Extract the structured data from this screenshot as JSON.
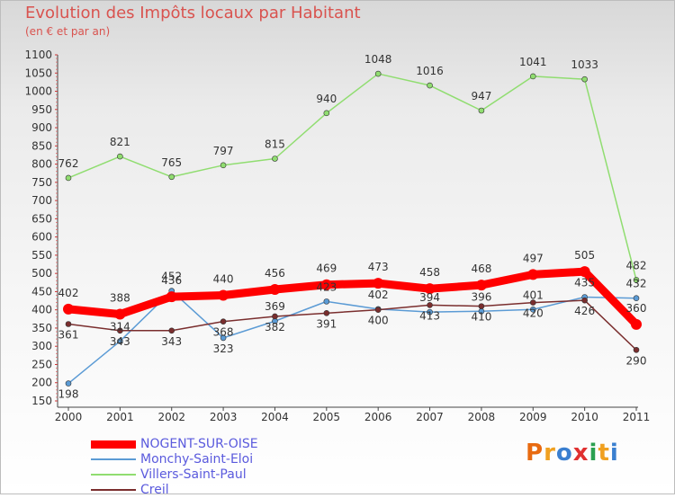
{
  "title": "Evolution des Impôts locaux par Habitant",
  "subtitle": "(en € et par an)",
  "logo_text": "Proxiti",
  "logo_colors": [
    "#e86a10",
    "#f0a020",
    "#3a7fd0",
    "#e03030",
    "#2aa050",
    "#f0a020",
    "#3a7fd0"
  ],
  "chart_data": {
    "type": "line",
    "x": [
      "2000",
      "2001",
      "2002",
      "2003",
      "2004",
      "2005",
      "2006",
      "2007",
      "2008",
      "2009",
      "2010",
      "2011"
    ],
    "yticks": [
      "150",
      "200",
      "250",
      "300",
      "350",
      "400",
      "450",
      "500",
      "550",
      "600",
      "650",
      "700",
      "750",
      "800",
      "850",
      "900",
      "950",
      "1000",
      "1050",
      "1100"
    ],
    "ylim": [
      150,
      1100
    ],
    "grid": false,
    "legend_position": "bottom-left",
    "series": [
      {
        "name": "NOGENT-SUR-OISE",
        "color": "#ff0000",
        "width": 9,
        "values": [
          402,
          388,
          436,
          440,
          456,
          469,
          473,
          458,
          468,
          497,
          505,
          360
        ],
        "labels": [
          "402",
          "388",
          "436",
          "440",
          "456",
          "469",
          "473",
          "458",
          "468",
          "497",
          "505",
          "360"
        ]
      },
      {
        "name": "Monchy-Saint-Eloi",
        "color": "#5b9bd5",
        "width": 1.5,
        "values": [
          198,
          314,
          452,
          323,
          369,
          423,
          402,
          394,
          396,
          401,
          435,
          432
        ],
        "labels": [
          "198",
          "314",
          "452",
          "323",
          "369",
          "423",
          "402",
          "394",
          "396",
          "401",
          "435",
          "432"
        ]
      },
      {
        "name": "Villers-Saint-Paul",
        "color": "#90dd70",
        "width": 1.5,
        "values": [
          762,
          821,
          765,
          797,
          815,
          940,
          1048,
          1016,
          947,
          1041,
          1033,
          482
        ],
        "labels": [
          "762",
          "821",
          "765",
          "797",
          "815",
          "940",
          "1048",
          "1016",
          "947",
          "1041",
          "1033",
          "482"
        ]
      },
      {
        "name": "Creil",
        "color": "#7a2e2e",
        "width": 1.5,
        "values": [
          361,
          343,
          343,
          368,
          382,
          391,
          400,
          413,
          410,
          420,
          426,
          290
        ],
        "labels": [
          "361",
          "343",
          "343",
          "368",
          "382",
          "391",
          "400",
          "413",
          "410",
          "420",
          "426",
          "290"
        ]
      }
    ]
  }
}
